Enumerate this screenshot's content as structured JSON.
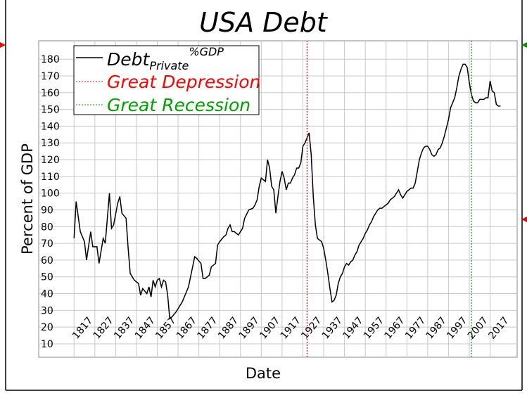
{
  "chart_data": {
    "type": "line",
    "title": "USA Debt",
    "xlabel": "Date",
    "ylabel": "Percent of GDP",
    "x": [
      1817,
      1818,
      1820,
      1822,
      1823,
      1825,
      1826,
      1828,
      1829,
      1831,
      1832,
      1834,
      1835,
      1836,
      1838,
      1839,
      1840,
      1842,
      1843,
      1844,
      1846,
      1848,
      1849,
      1850,
      1852,
      1853,
      1854,
      1855,
      1856,
      1857,
      1858,
      1859,
      1860,
      1861,
      1862,
      1863,
      1864,
      1866,
      1868,
      1869,
      1871,
      1872,
      1873,
      1875,
      1876,
      1878,
      1879,
      1880,
      1882,
      1883,
      1885,
      1886,
      1887,
      1889,
      1890,
      1891,
      1892,
      1893,
      1894,
      1896,
      1898,
      1899,
      1901,
      1903,
      1904,
      1905,
      1906,
      1907,
      1908,
      1909,
      1910,
      1911,
      1912,
      1913,
      1914,
      1915,
      1916,
      1917,
      1918,
      1919,
      1920,
      1921,
      1922,
      1923,
      1924,
      1925,
      1926,
      1927,
      1928,
      1929,
      1930,
      1931,
      1932,
      1933,
      1934,
      1935,
      1936,
      1937,
      1938,
      1939,
      1940,
      1941,
      1942,
      1943,
      1944,
      1945,
      1946,
      1947,
      1948,
      1949,
      1950,
      1951,
      1952,
      1953,
      1954,
      1955,
      1956,
      1957,
      1958,
      1959,
      1960,
      1961,
      1962,
      1963,
      1964,
      1965,
      1966,
      1967,
      1968,
      1969,
      1970,
      1971,
      1972,
      1973,
      1974,
      1975,
      1976,
      1977,
      1978,
      1979,
      1980,
      1981,
      1982,
      1983,
      1984,
      1985,
      1986,
      1987,
      1988,
      1989,
      1990,
      1991,
      1992,
      1993,
      1994,
      1995,
      1996,
      1997,
      1998,
      1999,
      2000,
      2001,
      2002,
      2003,
      2004,
      2005,
      2006,
      2007,
      2008,
      2009,
      2010,
      2011,
      2012,
      2013,
      2014,
      2015,
      2016,
      2017,
      2018,
      2019,
      2020,
      2021,
      2022
    ],
    "series": [
      {
        "name": "Debt",
        "name_sub": "Private",
        "name_sup": "%GDP",
        "color": "#000000",
        "values": [
          73,
          95,
          77,
          71,
          60,
          77,
          68,
          68,
          58,
          73,
          70,
          100,
          79,
          81,
          94,
          98,
          88,
          85,
          67,
          52,
          48,
          46,
          39,
          43,
          40,
          44,
          38,
          48,
          44,
          48,
          49,
          44,
          48,
          47,
          39,
          25,
          26,
          29,
          33,
          35,
          41,
          44,
          50,
          62,
          61,
          58,
          49,
          49,
          51,
          56,
          58,
          69,
          71,
          74,
          75,
          79,
          81,
          77,
          77,
          75,
          79,
          85,
          90,
          91,
          93,
          96,
          104,
          109,
          108,
          107,
          120,
          115,
          104,
          102,
          88,
          98,
          107,
          113,
          109,
          102,
          106,
          106,
          109,
          111,
          115,
          115,
          118,
          128,
          130,
          133,
          136,
          123,
          98,
          81,
          73,
          72,
          71,
          67,
          60,
          52,
          43,
          35,
          36,
          39,
          46,
          50,
          52,
          56,
          58,
          57,
          59,
          60,
          63,
          65,
          69,
          71,
          73,
          76,
          78,
          81,
          83,
          86,
          88,
          90,
          91,
          91,
          92,
          93,
          94,
          96,
          97,
          98,
          100,
          102,
          99,
          97,
          99,
          101,
          102,
          103,
          103,
          106,
          113,
          120,
          124,
          127,
          128,
          128,
          126,
          123,
          122,
          123,
          126,
          127,
          130,
          134,
          139,
          144,
          151,
          154,
          157,
          163,
          170,
          174,
          177,
          177,
          175,
          166,
          159,
          155,
          154,
          154,
          156,
          156,
          156,
          157,
          157,
          167,
          161,
          160,
          153,
          152,
          152
        ]
      }
    ],
    "events": [
      {
        "name": "Great Depression",
        "x": 1929,
        "color": "#ff0000"
      },
      {
        "name": "Great Recession",
        "x": 2008,
        "color": "#00a000"
      }
    ],
    "xlim": [
      1800,
      2030
    ],
    "ylim": [
      2,
      191
    ],
    "xticks": [
      1817,
      1827,
      1837,
      1847,
      1857,
      1867,
      1877,
      1887,
      1897,
      1907,
      1917,
      1927,
      1937,
      1947,
      1957,
      1967,
      1977,
      1987,
      1997,
      2007,
      2017
    ],
    "yticks": [
      10,
      20,
      30,
      40,
      50,
      60,
      70,
      80,
      90,
      100,
      110,
      120,
      130,
      140,
      150,
      160,
      170,
      180
    ],
    "grid": true
  }
}
